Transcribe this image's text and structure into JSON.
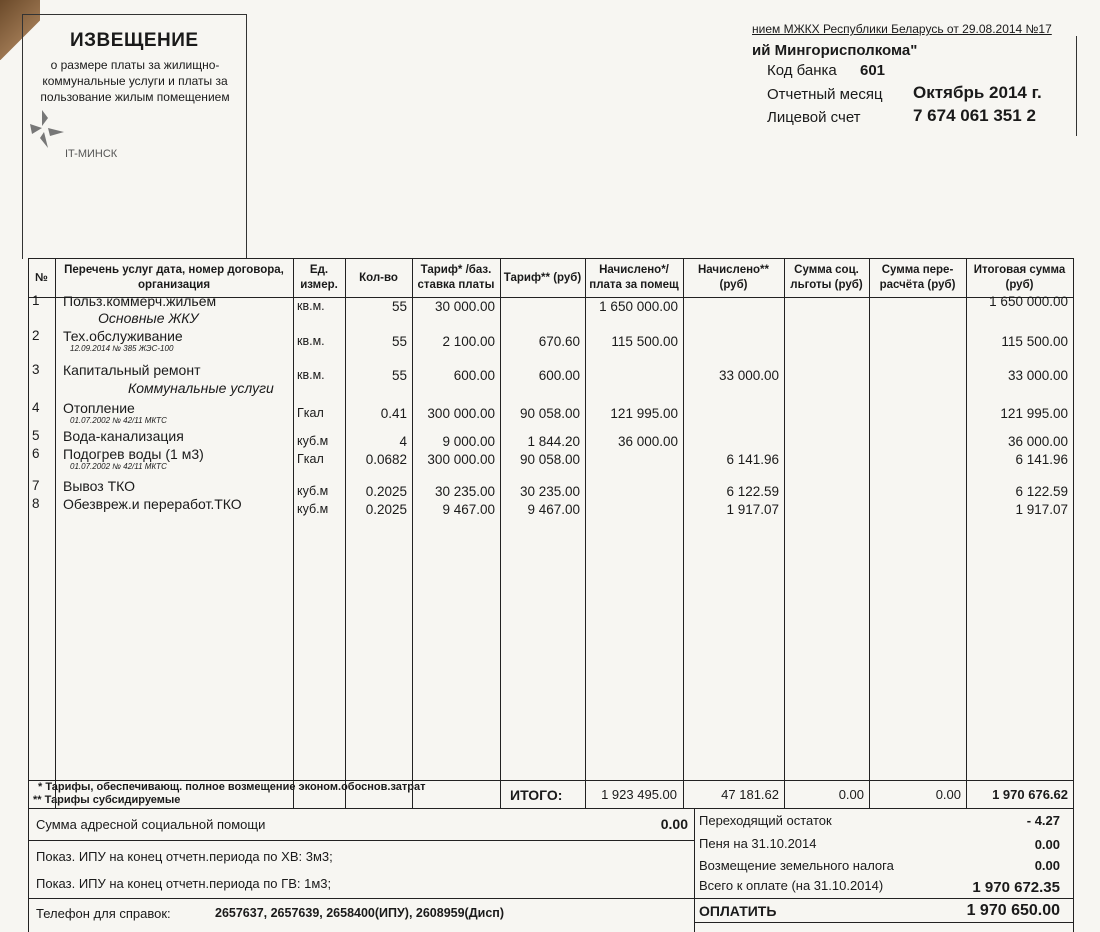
{
  "notice": {
    "title": "ИЗВЕЩЕНИЕ",
    "subtitle": "о размере платы за жилищно-коммунальные услуги и платы за пользование жилым помещением",
    "logo": "IT-МИНСК"
  },
  "header": {
    "decree": "нием МЖКХ Республики Беларусь от 29.08.2014 №17",
    "org": "ий Мингорисполкома\"",
    "bank_code_label": "Код банка",
    "bank_code": "601",
    "month_label": "Отчетный месяц",
    "month": "Октябрь 2014 г.",
    "account_label": "Лицевой счет",
    "account": "7 674 061 351 2"
  },
  "table": {
    "columns": [
      "№",
      "Перечень услуг дата, номер договора, организация",
      "Ед. измер.",
      "Кол-во",
      "Тариф* /баз. ставка платы",
      "Тариф** (руб)",
      "Начислено*/ плата за помещ",
      "Начислено** (руб)",
      "Сумма соц. льготы (руб)",
      "Сумма пере-расчёта (руб)",
      "Итоговая сумма (руб)"
    ],
    "groups": [
      "Основные ЖКУ",
      "Коммунальные услуги"
    ],
    "rows": [
      {
        "n": "1",
        "name": "Польз.коммерч.жильем",
        "note": "",
        "unit": "кв.м.",
        "qty": "55",
        "tariff1": "30 000.00",
        "tariff2": "",
        "acc1": "1 650 000.00",
        "acc2": "",
        "total": "1 650 000.00"
      },
      {
        "n": "2",
        "name": "Тех.обслуживание",
        "note": "12.09.2014 № 385 ЖЭС-100",
        "unit": "кв.м.",
        "qty": "55",
        "tariff1": "2 100.00",
        "tariff2": "670.60",
        "acc1": "115 500.00",
        "acc2": "",
        "total": "115 500.00"
      },
      {
        "n": "3",
        "name": "Капитальный ремонт",
        "note": "",
        "unit": "кв.м.",
        "qty": "55",
        "tariff1": "600.00",
        "tariff2": "600.00",
        "acc1": "",
        "acc2": "33 000.00",
        "total": "33 000.00"
      },
      {
        "n": "4",
        "name": "Отопление",
        "note": "01.07.2002 № 42/11 МКТС",
        "unit": "Гкал",
        "qty": "0.41",
        "tariff1": "300 000.00",
        "tariff2": "90 058.00",
        "acc1": "121 995.00",
        "acc2": "",
        "total": "121 995.00"
      },
      {
        "n": "5",
        "name": "Вода-канализация",
        "note": "",
        "unit": "куб.м",
        "qty": "4",
        "tariff1": "9 000.00",
        "tariff2": "1 844.20",
        "acc1": "36 000.00",
        "acc2": "",
        "total": "36 000.00"
      },
      {
        "n": "6",
        "name": "Подогрев воды (1 м3)",
        "note": "01.07.2002 № 42/11 МКТС",
        "unit": "Гкал",
        "qty": "0.0682",
        "tariff1": "300 000.00",
        "tariff2": "90 058.00",
        "acc1": "",
        "acc2": "6 141.96",
        "total": "6 141.96"
      },
      {
        "n": "7",
        "name": "Вывоз ТКО",
        "note": "",
        "unit": "куб.м",
        "qty": "0.2025",
        "tariff1": "30 235.00",
        "tariff2": "30 235.00",
        "acc1": "",
        "acc2": "6 122.59",
        "total": "6 122.59"
      },
      {
        "n": "8",
        "name": "Обезвреж.и переработ.ТКО",
        "note": "",
        "unit": "куб.м",
        "qty": "0.2025",
        "tariff1": "9 467.00",
        "tariff2": "9 467.00",
        "acc1": "",
        "acc2": "1 917.07",
        "total": "1 917.07"
      }
    ]
  },
  "footnotes": [
    "* Тарифы, обеспечивающ. полное возмещение эконом.обоснов.затрат",
    "** Тарифы субсидируемые"
  ],
  "totals": {
    "label": "ИТОГО:",
    "acc1": "1 923 495.00",
    "acc2": "47 181.62",
    "soc": "0.00",
    "recalc": "0.00",
    "total": "1 970 676.62"
  },
  "bottom": {
    "social_help_label": "Сумма адресной социальной помощи",
    "social_help": "0.00",
    "meter_cold": "Показ. ИПУ на конец отчетн.периода по ХВ: 3м3;",
    "meter_hot": "Показ. ИПУ на конец отчетн.периода по ГВ: 1м3;",
    "phone_label": "Телефон для справок:",
    "phones": "2657637, 2657639, 2658400(ИПУ), 2608959(Дисп)",
    "carry_label": "Переходящий остаток",
    "carry": "- 4.27",
    "penalty_label": "Пеня на 31.10.2014",
    "penalty": "0.00",
    "land_tax_label": "Возмещение земельного налога",
    "land_tax": "0.00",
    "due_label": "Всего к оплате  (на 31.10.2014)",
    "due": "1 970 672.35",
    "pay_label": "ОПЛАТИТЬ",
    "pay": "1 970 650.00"
  }
}
